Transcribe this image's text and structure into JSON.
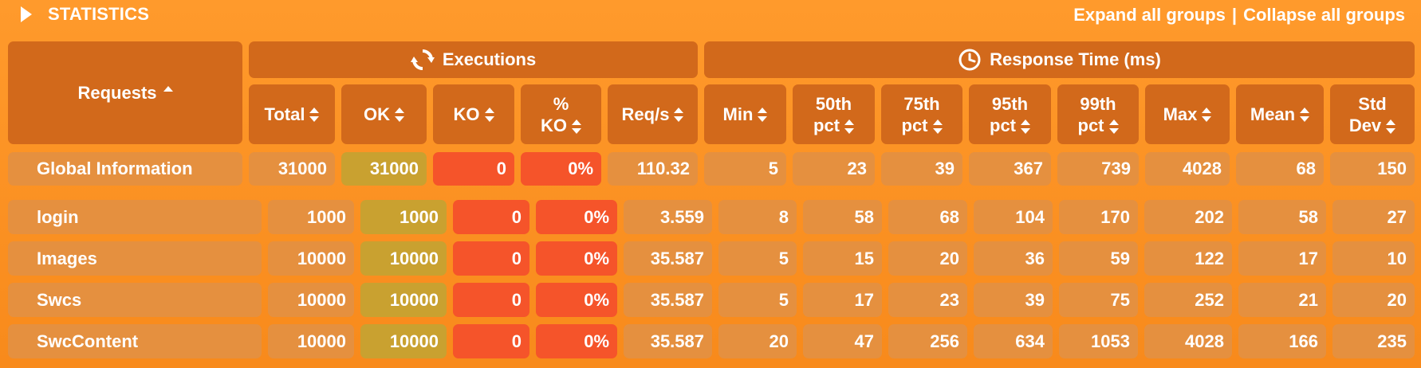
{
  "header": {
    "title": "STATISTICS",
    "expand_label": "Expand all groups",
    "separator": "|",
    "collapse_label": "Collapse all groups"
  },
  "table": {
    "requests_header": "Requests",
    "executions_header": "Executions",
    "executions_icon": "refresh-icon",
    "response_time_header": "Response Time (ms)",
    "response_time_icon": "clock-icon",
    "columns": {
      "total": "Total",
      "ok": "OK",
      "ko": "KO",
      "pct_ko_1": "%",
      "pct_ko_2": "KO",
      "req_s": "Req/s",
      "min": "Min",
      "p50_1": "50th",
      "p50_2": "pct",
      "p75_1": "75th",
      "p75_2": "pct",
      "p95_1": "95th",
      "p95_2": "pct",
      "p99_1": "99th",
      "p99_2": "pct",
      "max": "Max",
      "mean": "Mean",
      "std_1": "Std",
      "std_2": "Dev"
    },
    "global": {
      "name": "Global Information",
      "total": "31000",
      "ok": "31000",
      "ko": "0",
      "pct_ko": "0%",
      "req_s": "110.32",
      "min": "5",
      "p50": "23",
      "p75": "39",
      "p95": "367",
      "p99": "739",
      "max": "4028",
      "mean": "68",
      "std": "150"
    },
    "rows": [
      {
        "name": "login",
        "total": "1000",
        "ok": "1000",
        "ko": "0",
        "pct_ko": "0%",
        "req_s": "3.559",
        "min": "8",
        "p50": "58",
        "p75": "68",
        "p95": "104",
        "p99": "170",
        "max": "202",
        "mean": "58",
        "std": "27"
      },
      {
        "name": "Images",
        "total": "10000",
        "ok": "10000",
        "ko": "0",
        "pct_ko": "0%",
        "req_s": "35.587",
        "min": "5",
        "p50": "15",
        "p75": "20",
        "p95": "36",
        "p99": "59",
        "max": "122",
        "mean": "17",
        "std": "10"
      },
      {
        "name": "Swcs",
        "total": "10000",
        "ok": "10000",
        "ko": "0",
        "pct_ko": "0%",
        "req_s": "35.587",
        "min": "5",
        "p50": "17",
        "p75": "23",
        "p95": "39",
        "p99": "75",
        "max": "252",
        "mean": "21",
        "std": "20"
      },
      {
        "name": "SwcContent",
        "total": "10000",
        "ok": "10000",
        "ko": "0",
        "pct_ko": "0%",
        "req_s": "35.587",
        "min": "20",
        "p50": "47",
        "p75": "256",
        "p95": "634",
        "p99": "1053",
        "max": "4028",
        "mean": "166",
        "std": "235"
      }
    ]
  },
  "colors": {
    "background": "#ff9a2c",
    "header_cell": "#d2691b",
    "value_cell": "#e5903f",
    "ok_cell": "#c9a130",
    "ko_cell": "#f5542a"
  }
}
